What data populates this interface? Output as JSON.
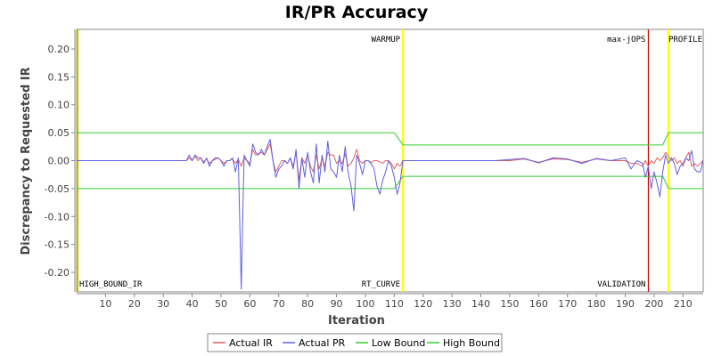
{
  "chart_data": {
    "type": "line",
    "title": "IR/PR Accuracy",
    "xlabel": "Iteration",
    "ylabel": "Discrepancy to Requested IR",
    "xlim": [
      0,
      217
    ],
    "ylim": [
      -0.235,
      0.235
    ],
    "x_ticks": [
      10,
      20,
      30,
      40,
      50,
      60,
      70,
      80,
      90,
      100,
      110,
      120,
      130,
      140,
      150,
      160,
      170,
      180,
      190,
      200,
      210
    ],
    "y_ticks": [
      0.2,
      0.15,
      0.1,
      0.05,
      0.0,
      -0.05,
      -0.1,
      -0.15,
      -0.2
    ],
    "y_tick_labels": [
      "0.20",
      "0.15",
      "0.10",
      "0.05",
      "0.00",
      "-0.05",
      "-0.10",
      "-0.15",
      "-0.20"
    ],
    "grid": false,
    "legend_position": "bottom",
    "markers": [
      {
        "x": 0,
        "label": "HIGH_BOUND_IR",
        "color": "#c0c000",
        "label_pos": "bottom"
      },
      {
        "x": 113,
        "label": "WARMUP",
        "color": "#ffff00",
        "label_pos": "top"
      },
      {
        "x": 113,
        "label": "RT_CURVE",
        "color": "#ffff00",
        "label_pos": "bottom"
      },
      {
        "x": 198,
        "label": "max-jOPS",
        "color": "#cc0000",
        "label_pos": "top"
      },
      {
        "x": 198,
        "label": "VALIDATION",
        "color": "#cc0000",
        "label_pos": "bottom"
      },
      {
        "x": 205,
        "label": "PROFILE",
        "color": "#ffff00",
        "label_pos": "top"
      }
    ],
    "series": [
      {
        "name": "Actual IR",
        "color": "#e06060",
        "x": [
          0,
          38,
          39,
          40,
          41,
          42,
          43,
          44,
          45,
          46,
          47,
          48,
          49,
          50,
          51,
          52,
          53,
          54,
          55,
          56,
          57,
          58,
          59,
          60,
          61,
          62,
          63,
          64,
          65,
          66,
          67,
          68,
          69,
          70,
          71,
          72,
          73,
          74,
          75,
          76,
          77,
          78,
          79,
          80,
          81,
          82,
          83,
          84,
          85,
          86,
          87,
          88,
          89,
          90,
          91,
          92,
          93,
          94,
          95,
          96,
          97,
          98,
          99,
          100,
          101,
          102,
          103,
          104,
          105,
          106,
          107,
          108,
          109,
          110,
          111,
          112,
          113,
          143,
          145,
          150,
          155,
          160,
          165,
          170,
          175,
          180,
          185,
          190,
          192,
          194,
          196,
          197,
          198,
          199,
          200,
          201,
          202,
          203,
          204,
          205,
          206,
          207,
          208,
          209,
          210,
          211,
          212,
          213,
          214,
          215,
          216,
          217
        ],
        "values": [
          0.0,
          0.0,
          0.005,
          0.0,
          0.008,
          0.0,
          0.005,
          -0.002,
          0.003,
          -0.005,
          0.0,
          0.002,
          0.005,
          0.0,
          -0.005,
          0.0,
          0.0,
          0.003,
          -0.005,
          0.002,
          -0.01,
          0.005,
          0.0,
          -0.005,
          0.02,
          0.01,
          0.012,
          0.015,
          0.01,
          0.02,
          0.03,
          0.0,
          -0.02,
          -0.01,
          0.0,
          0.0,
          -0.005,
          0.005,
          -0.01,
          0.015,
          -0.035,
          0.005,
          -0.005,
          0.01,
          -0.01,
          -0.02,
          0.01,
          -0.015,
          0.005,
          -0.01,
          0.015,
          0.01,
          0.01,
          -0.005,
          0.0,
          -0.005,
          0.012,
          -0.01,
          -0.005,
          0.005,
          0.02,
          0.0,
          -0.005,
          0.0,
          0.0,
          -0.003,
          0.0,
          0.0,
          -0.002,
          -0.005,
          0.0,
          0.0,
          -0.005,
          -0.015,
          -0.005,
          -0.01,
          0.0,
          0.0,
          0.0,
          0.0,
          0.003,
          -0.003,
          0.003,
          0.002,
          -0.003,
          0.003,
          0.0,
          0.0,
          -0.005,
          -0.005,
          -0.01,
          0.0,
          -0.01,
          0.0,
          -0.005,
          0.005,
          0.0,
          0.005,
          0.015,
          0.008,
          0.0,
          0.005,
          -0.005,
          0.0,
          -0.01,
          0.005,
          0.015,
          -0.01,
          -0.005,
          -0.01,
          -0.005,
          0.0
        ]
      },
      {
        "name": "Actual PR",
        "color": "#6060e0",
        "x": [
          0,
          38,
          39,
          40,
          41,
          42,
          43,
          44,
          45,
          46,
          47,
          48,
          49,
          50,
          51,
          52,
          53,
          54,
          55,
          56,
          57,
          58,
          59,
          60,
          61,
          62,
          63,
          64,
          65,
          66,
          67,
          68,
          69,
          70,
          71,
          72,
          73,
          74,
          75,
          76,
          77,
          78,
          79,
          80,
          81,
          82,
          83,
          84,
          85,
          86,
          87,
          88,
          89,
          90,
          91,
          92,
          93,
          94,
          95,
          96,
          97,
          98,
          99,
          100,
          101,
          102,
          103,
          104,
          105,
          106,
          107,
          108,
          109,
          110,
          111,
          112,
          113,
          143,
          145,
          150,
          155,
          160,
          165,
          170,
          175,
          180,
          185,
          190,
          192,
          194,
          196,
          197,
          198,
          199,
          200,
          201,
          202,
          203,
          204,
          205,
          206,
          207,
          208,
          209,
          210,
          211,
          212,
          213,
          214,
          215,
          216,
          217
        ],
        "values": [
          0.0,
          0.0,
          0.01,
          0.0,
          0.01,
          0.005,
          0.005,
          -0.005,
          0.005,
          -0.01,
          0.0,
          0.005,
          0.005,
          0.0,
          -0.01,
          0.0,
          0.0,
          0.005,
          -0.02,
          0.005,
          -0.23,
          0.01,
          0.0,
          -0.01,
          0.03,
          0.015,
          0.01,
          0.02,
          0.01,
          0.025,
          0.038,
          0.0,
          -0.03,
          -0.015,
          -0.01,
          0.0,
          -0.005,
          0.005,
          -0.015,
          0.02,
          -0.05,
          0.005,
          -0.03,
          0.015,
          -0.02,
          -0.04,
          0.03,
          -0.04,
          0.01,
          -0.02,
          0.035,
          -0.015,
          -0.02,
          -0.03,
          0.01,
          -0.02,
          0.025,
          -0.02,
          -0.045,
          -0.09,
          0.01,
          -0.005,
          -0.025,
          0.0,
          0.0,
          -0.005,
          -0.015,
          -0.045,
          -0.06,
          -0.035,
          -0.02,
          0.0,
          -0.01,
          -0.03,
          -0.06,
          -0.04,
          0.0,
          0.0,
          0.0,
          0.002,
          0.004,
          -0.004,
          0.005,
          0.003,
          -0.005,
          0.004,
          0.0,
          0.005,
          -0.015,
          0.0,
          -0.005,
          -0.03,
          -0.01,
          -0.05,
          -0.02,
          -0.04,
          -0.065,
          -0.02,
          0.01,
          -0.005,
          0.005,
          -0.005,
          -0.025,
          -0.01,
          -0.005,
          0.005,
          0.0,
          0.018,
          -0.015,
          -0.02,
          -0.02,
          0.0
        ]
      },
      {
        "name": "Low Bound",
        "color": "#33cc33",
        "x": [
          0,
          110,
          113,
          203,
          205,
          217
        ],
        "values": [
          -0.05,
          -0.05,
          -0.028,
          -0.028,
          -0.05,
          -0.05
        ]
      },
      {
        "name": "High Bound",
        "color": "#33cc33",
        "x": [
          0,
          110,
          113,
          203,
          205,
          217
        ],
        "values": [
          0.05,
          0.05,
          0.028,
          0.028,
          0.05,
          0.05
        ]
      }
    ]
  }
}
